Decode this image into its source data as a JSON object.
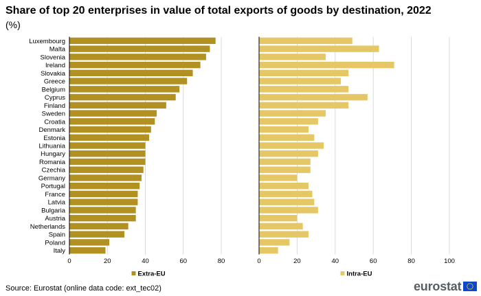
{
  "title": "Share of top 20 enterprises in value of total exports of goods by destination, 2022",
  "subtitle": "(%)",
  "source": "Source: Eurostat (online data code: ext_tec02)",
  "logo_text": "eurostat",
  "colors": {
    "extra_eu": "#b09121",
    "intra_eu": "#e6c766",
    "grid": "#d9d9d9",
    "logo_flag": "#0e47cb",
    "logo_stars": "#ffdd00"
  },
  "chart_data": {
    "type": "bar",
    "orientation": "horizontal",
    "categories": [
      "Luxembourg",
      "Malta",
      "Slovenia",
      "Ireland",
      "Slovakia",
      "Greece",
      "Belgium",
      "Cyprus",
      "Finland",
      "Sweden",
      "Croatia",
      "Denmark",
      "Estonia",
      "Lithuania",
      "Hungary",
      "Romania",
      "Czechia",
      "Germany",
      "Portugal",
      "France",
      "Latvia",
      "Bulgaria",
      "Austria",
      "Netherlands",
      "Spain",
      "Poland",
      "Italy"
    ],
    "panels": [
      {
        "name": "Extra-EU",
        "color": "#b09121",
        "values": [
          77,
          74,
          72,
          69,
          65,
          62,
          58,
          56,
          51,
          46,
          45,
          43,
          42,
          40,
          40,
          40,
          39,
          38,
          37,
          36,
          36,
          35,
          35,
          31,
          29,
          21,
          19
        ],
        "xlim": [
          0,
          80
        ],
        "ticks": [
          0,
          20,
          40,
          60,
          80
        ]
      },
      {
        "name": "Intra-EU",
        "color": "#e6c766",
        "values": [
          49,
          63,
          35,
          71,
          47,
          43,
          47,
          57,
          47,
          35,
          31,
          26,
          29,
          34,
          31,
          27,
          27,
          20,
          26,
          28,
          29,
          31,
          20,
          23,
          26,
          16,
          10
        ],
        "xlim": [
          0,
          100
        ],
        "ticks": [
          0,
          20,
          40,
          60,
          80,
          100
        ]
      }
    ],
    "legend": [
      "Extra-EU",
      "Intra-EU"
    ],
    "legend_position": "bottom"
  }
}
